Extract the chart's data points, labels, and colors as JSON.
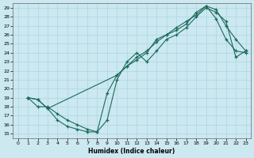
{
  "xlabel": "Humidex (Indice chaleur)",
  "bg_color": "#cce8f0",
  "grid_color": "#b0d8e8",
  "line_color": "#1a6b5a",
  "xlim": [
    -0.5,
    23.5
  ],
  "ylim": [
    14.5,
    29.5
  ],
  "xticks": [
    0,
    1,
    2,
    3,
    4,
    5,
    6,
    7,
    8,
    9,
    10,
    11,
    12,
    13,
    14,
    15,
    16,
    17,
    18,
    19,
    20,
    21,
    22,
    23
  ],
  "yticks": [
    15,
    16,
    17,
    18,
    19,
    20,
    21,
    22,
    23,
    24,
    25,
    26,
    27,
    28,
    29
  ],
  "series1_x": [
    1,
    2,
    3,
    4,
    5,
    6,
    7,
    8,
    9,
    10,
    11,
    12,
    13,
    14,
    15,
    16,
    17,
    18,
    19,
    20,
    21,
    22,
    23
  ],
  "series1_y": [
    19.0,
    18.8,
    17.8,
    16.5,
    15.8,
    15.5,
    15.2,
    15.2,
    19.5,
    21.5,
    22.5,
    23.2,
    24.0,
    25.5,
    26.0,
    26.5,
    27.2,
    28.5,
    29.2,
    27.8,
    25.5,
    24.2,
    24.0
  ],
  "series2_x": [
    1,
    2,
    3,
    10,
    11,
    12,
    13,
    14,
    15,
    16,
    17,
    18,
    19,
    20,
    21,
    22,
    23
  ],
  "series2_y": [
    19.0,
    18.8,
    17.8,
    21.5,
    22.5,
    23.5,
    24.2,
    25.2,
    26.0,
    26.8,
    27.5,
    28.2,
    29.2,
    28.8,
    27.0,
    25.5,
    24.2
  ],
  "series3_x": [
    1,
    2,
    3,
    4,
    5,
    6,
    7,
    8,
    9,
    10,
    11,
    12,
    13,
    14,
    15,
    16,
    17,
    18,
    19,
    20,
    21,
    22,
    23
  ],
  "series3_y": [
    19.0,
    18.0,
    18.0,
    17.2,
    16.5,
    16.0,
    15.5,
    15.2,
    16.5,
    21.0,
    23.0,
    24.0,
    23.0,
    24.2,
    25.5,
    26.0,
    26.8,
    28.0,
    29.0,
    28.5,
    27.5,
    23.5,
    24.2
  ]
}
